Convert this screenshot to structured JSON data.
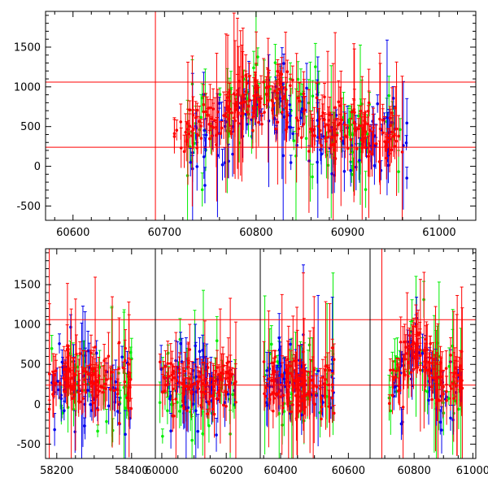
{
  "chart_data": [
    {
      "type": "scatter",
      "title": "",
      "xlabel": "",
      "ylabel": "",
      "xlim": [
        60570,
        61040
      ],
      "ylim": [
        -680,
        1950
      ],
      "x_ticks": [
        60600,
        60700,
        60800,
        60900,
        61000
      ],
      "x_tick_labels": [
        "60600",
        "60700",
        "60800",
        "60900",
        "61000"
      ],
      "y_ticks": [
        -500,
        0,
        500,
        1000,
        1500
      ],
      "y_tick_labels": [
        "-500",
        "0",
        "500",
        "1000",
        "1500"
      ],
      "hlines": [
        1060,
        240
      ],
      "vlines": [
        60690
      ],
      "data_range": [
        60710,
        60965
      ],
      "series": [
        {
          "color": "#00ee00",
          "x_range": [
            60725,
            60960
          ],
          "y_center": 400,
          "y_spread": 480,
          "n": 110,
          "seed": 11
        },
        {
          "color": "#0000ee",
          "x_range": [
            60725,
            60965
          ],
          "y_center": 300,
          "y_spread": 460,
          "n": 120,
          "seed": 23
        },
        {
          "color": "#ff0000",
          "x_range": [
            60710,
            60960
          ],
          "y_center": 420,
          "y_spread": 300,
          "n": 260,
          "seed": 37
        }
      ],
      "grid": false,
      "legend": "none"
    },
    {
      "type": "scatter",
      "title": "",
      "xlabel": "",
      "ylabel": "",
      "ylim": [
        -680,
        1950
      ],
      "y_ticks": [
        -500,
        0,
        500,
        1000,
        1500
      ],
      "y_tick_labels": [
        "-500",
        "0",
        "500",
        "1000",
        "1500"
      ],
      "hlines": [
        1060,
        240
      ],
      "segments": [
        {
          "xlim": [
            58170,
            58420
          ],
          "ticks": [
            58200,
            58400
          ],
          "tick_labels": [
            "58200",
            "58400"
          ],
          "vlines": [
            58180
          ],
          "data_range": [
            58180,
            58400
          ]
        },
        {
          "xlim": [
            59980,
            60245
          ],
          "ticks": [
            60000,
            60200
          ],
          "tick_labels": [
            "60000",
            "60200"
          ],
          "vlines": [],
          "data_range": [
            59990,
            60230
          ]
        },
        {
          "xlim": [
            60340,
            60640
          ],
          "ticks": [
            60400,
            60600
          ],
          "tick_labels": [
            "60400",
            "60600"
          ],
          "vlines": [],
          "data_range": [
            60350,
            60560
          ]
        },
        {
          "xlim": [
            60650,
            61010
          ],
          "ticks": [
            60800,
            61000
          ],
          "tick_labels": [
            "60800",
            "61000"
          ],
          "vlines": [
            60690
          ],
          "data_range": [
            60710,
            60965
          ]
        }
      ],
      "series": [
        {
          "color": "#00ee00",
          "y_center": 250,
          "y_spread": 480,
          "n_per_segment": 45,
          "seed": 51
        },
        {
          "color": "#0000ee",
          "y_center": 200,
          "y_spread": 460,
          "n_per_segment": 50,
          "seed": 63
        },
        {
          "color": "#ff0000",
          "y_center": 250,
          "y_spread": 320,
          "n_per_segment": 110,
          "seed": 77
        }
      ],
      "grid": false,
      "legend": "none"
    }
  ]
}
